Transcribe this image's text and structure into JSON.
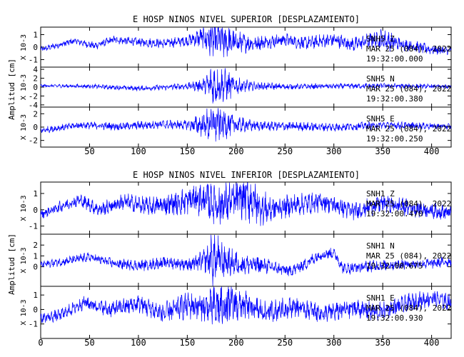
{
  "chart_data": [
    {
      "type": "line",
      "title": "E HOSP NINOS NIVEL SUPERIOR [DESPLAZAMIENTO]",
      "ylabel": "Amplitud [cm]",
      "xlim": [
        0,
        420
      ],
      "x_ticks": [
        50,
        100,
        150,
        200,
        250,
        300,
        350,
        400
      ],
      "line_color": "#0000ff",
      "panels": [
        {
          "multiplier_label": "X 10-3",
          "ylim": [
            -1.6,
            1.6
          ],
          "y_ticks": [
            -1,
            0,
            1
          ],
          "station": "SNH5 Z",
          "date": "MAR 25 (084), 2022",
          "time": "19:32:00.000",
          "series": {
            "shape": [
              [
                0,
                -0.2
              ],
              [
                20,
                0.2
              ],
              [
                35,
                0.5
              ],
              [
                55,
                0.1
              ],
              [
                75,
                0.6
              ],
              [
                100,
                0.4
              ],
              [
                125,
                0.3
              ],
              [
                150,
                0.5
              ],
              [
                165,
                0.8
              ],
              [
                175,
                0.6
              ],
              [
                195,
                0.4
              ],
              [
                220,
                0.3
              ],
              [
                250,
                0.6
              ],
              [
                270,
                0.3
              ],
              [
                300,
                0.6
              ],
              [
                320,
                0.2
              ],
              [
                345,
                0.7
              ],
              [
                365,
                0.3
              ],
              [
                400,
                -0.2
              ],
              [
                420,
                -0.3
              ]
            ],
            "noise": [
              [
                0,
                0.2
              ],
              [
                150,
                0.35
              ],
              [
                165,
                0.7
              ],
              [
                172,
                1.3
              ],
              [
                185,
                1.4
              ],
              [
                200,
                0.8
              ],
              [
                220,
                0.5
              ],
              [
                260,
                0.45
              ],
              [
                340,
                0.5
              ],
              [
                350,
                0.8
              ],
              [
                370,
                0.4
              ],
              [
                420,
                0.3
              ]
            ]
          }
        },
        {
          "multiplier_label": "X 10-3",
          "ylim": [
            -4.5,
            4.5
          ],
          "y_ticks": [
            -4,
            -2,
            0,
            2,
            4
          ],
          "station": "SNH5 N",
          "date": "MAR 25 (084), 2022",
          "time": "19:32:00.380",
          "series": {
            "shape": [
              [
                0,
                0.3
              ],
              [
                50,
                0.2
              ],
              [
                100,
                -0.3
              ],
              [
                150,
                0.2
              ],
              [
                175,
                0.5
              ],
              [
                200,
                0.3
              ],
              [
                250,
                0.1
              ],
              [
                300,
                0.2
              ],
              [
                350,
                0.3
              ],
              [
                420,
                0.1
              ]
            ],
            "noise": [
              [
                0,
                0.3
              ],
              [
                150,
                0.6
              ],
              [
                168,
                1.5
              ],
              [
                176,
                4.0
              ],
              [
                190,
                3.0
              ],
              [
                200,
                1.6
              ],
              [
                220,
                0.8
              ],
              [
                260,
                0.5
              ],
              [
                340,
                0.5
              ],
              [
                420,
                0.4
              ]
            ]
          }
        },
        {
          "multiplier_label": "X 10-3",
          "ylim": [
            -3,
            3
          ],
          "y_ticks": [
            -2,
            0,
            2
          ],
          "station": "SNH5 E",
          "date": "MAR 25 (084), 2022",
          "time": "19:32:00.250",
          "series": {
            "shape": [
              [
                0,
                -0.5
              ],
              [
                40,
                0.3
              ],
              [
                80,
                0.1
              ],
              [
                120,
                0.4
              ],
              [
                160,
                0.3
              ],
              [
                180,
                0.5
              ],
              [
                220,
                0.2
              ],
              [
                260,
                0.1
              ],
              [
                300,
                0.0
              ],
              [
                350,
                0.3
              ],
              [
                420,
                0.1
              ]
            ],
            "noise": [
              [
                0,
                0.4
              ],
              [
                150,
                0.6
              ],
              [
                165,
                1.5
              ],
              [
                176,
                2.7
              ],
              [
                185,
                2.0
              ],
              [
                200,
                1.2
              ],
              [
                220,
                0.6
              ],
              [
                340,
                0.5
              ],
              [
                420,
                0.4
              ]
            ]
          }
        }
      ]
    },
    {
      "type": "line",
      "title": "E HOSP NINOS NIVEL INFERIOR [DESPLAZAMIENTO]",
      "ylabel": "Amplitud [cm]",
      "xlim": [
        0,
        420
      ],
      "x_ticks": [
        0,
        50,
        100,
        150,
        200,
        250,
        300,
        350,
        400
      ],
      "line_color": "#0000ff",
      "panels": [
        {
          "multiplier_label": "X 10-3",
          "ylim": [
            -1.5,
            1.7
          ],
          "y_ticks": [
            -1,
            0,
            1
          ],
          "station": "SNH1 Z",
          "date": "MAR 25 (084), 2022",
          "time": "19:32:00.470",
          "series": {
            "shape": [
              [
                0,
                -0.3
              ],
              [
                20,
                0.2
              ],
              [
                40,
                0.6
              ],
              [
                60,
                0.0
              ],
              [
                85,
                0.5
              ],
              [
                110,
                0.2
              ],
              [
                140,
                0.4
              ],
              [
                160,
                0.7
              ],
              [
                185,
                0.3
              ],
              [
                210,
                0.8
              ],
              [
                230,
                0.0
              ],
              [
                260,
                0.3
              ],
              [
                290,
                0.5
              ],
              [
                320,
                -0.1
              ],
              [
                350,
                0.4
              ],
              [
                380,
                0.1
              ],
              [
                420,
                -0.2
              ]
            ],
            "noise": [
              [
                0,
                0.25
              ],
              [
                120,
                0.5
              ],
              [
                160,
                0.8
              ],
              [
                180,
                1.2
              ],
              [
                200,
                1.0
              ],
              [
                215,
                1.3
              ],
              [
                240,
                0.6
              ],
              [
                300,
                0.5
              ],
              [
                420,
                0.4
              ]
            ]
          }
        },
        {
          "multiplier_label": "X 10-3",
          "ylim": [
            -1.8,
            3.0
          ],
          "y_ticks": [
            0,
            1,
            2
          ],
          "station": "SNH1 N",
          "date": "MAR 25 (084), 2022",
          "time": "19:32:00.675",
          "series": {
            "shape": [
              [
                0,
                0.2
              ],
              [
                25,
                0.5
              ],
              [
                50,
                0.9
              ],
              [
                75,
                0.3
              ],
              [
                100,
                0.1
              ],
              [
                130,
                0.4
              ],
              [
                155,
                0.2
              ],
              [
                175,
                0.8
              ],
              [
                200,
                0.3
              ],
              [
                230,
                0.1
              ],
              [
                255,
                -0.4
              ],
              [
                270,
                0.2
              ],
              [
                285,
                1.1
              ],
              [
                300,
                1.3
              ],
              [
                310,
                -0.2
              ],
              [
                330,
                0.0
              ],
              [
                360,
                0.2
              ],
              [
                400,
                0.3
              ],
              [
                420,
                0.5
              ]
            ],
            "noise": [
              [
                0,
                0.3
              ],
              [
                150,
                0.5
              ],
              [
                170,
                1.0
              ],
              [
                176,
                2.2
              ],
              [
                190,
                1.2
              ],
              [
                210,
                0.8
              ],
              [
                240,
                0.5
              ],
              [
                420,
                0.4
              ]
            ]
          }
        },
        {
          "multiplier_label": "X 10-3",
          "ylim": [
            -2.0,
            1.6
          ],
          "y_ticks": [
            -1,
            0,
            1
          ],
          "station": "SNH1 E",
          "date": "MAR 25 (084), 2022",
          "time": "19:32:00.930",
          "series": {
            "shape": [
              [
                0,
                -0.6
              ],
              [
                20,
                -0.4
              ],
              [
                45,
                0.5
              ],
              [
                70,
                0.0
              ],
              [
                100,
                0.4
              ],
              [
                125,
                -0.3
              ],
              [
                150,
                0.3
              ],
              [
                175,
                0.1
              ],
              [
                200,
                0.4
              ],
              [
                230,
                -0.2
              ],
              [
                260,
                0.2
              ],
              [
                290,
                -0.3
              ],
              [
                320,
                0.1
              ],
              [
                345,
                -0.2
              ],
              [
                375,
                0.4
              ],
              [
                400,
                0.8
              ],
              [
                420,
                0.5
              ]
            ],
            "noise": [
              [
                0,
                0.3
              ],
              [
                120,
                0.6
              ],
              [
                170,
                0.9
              ],
              [
                180,
                1.4
              ],
              [
                195,
                1.3
              ],
              [
                215,
                0.8
              ],
              [
                250,
                0.6
              ],
              [
                420,
                0.5
              ]
            ]
          }
        }
      ]
    }
  ]
}
